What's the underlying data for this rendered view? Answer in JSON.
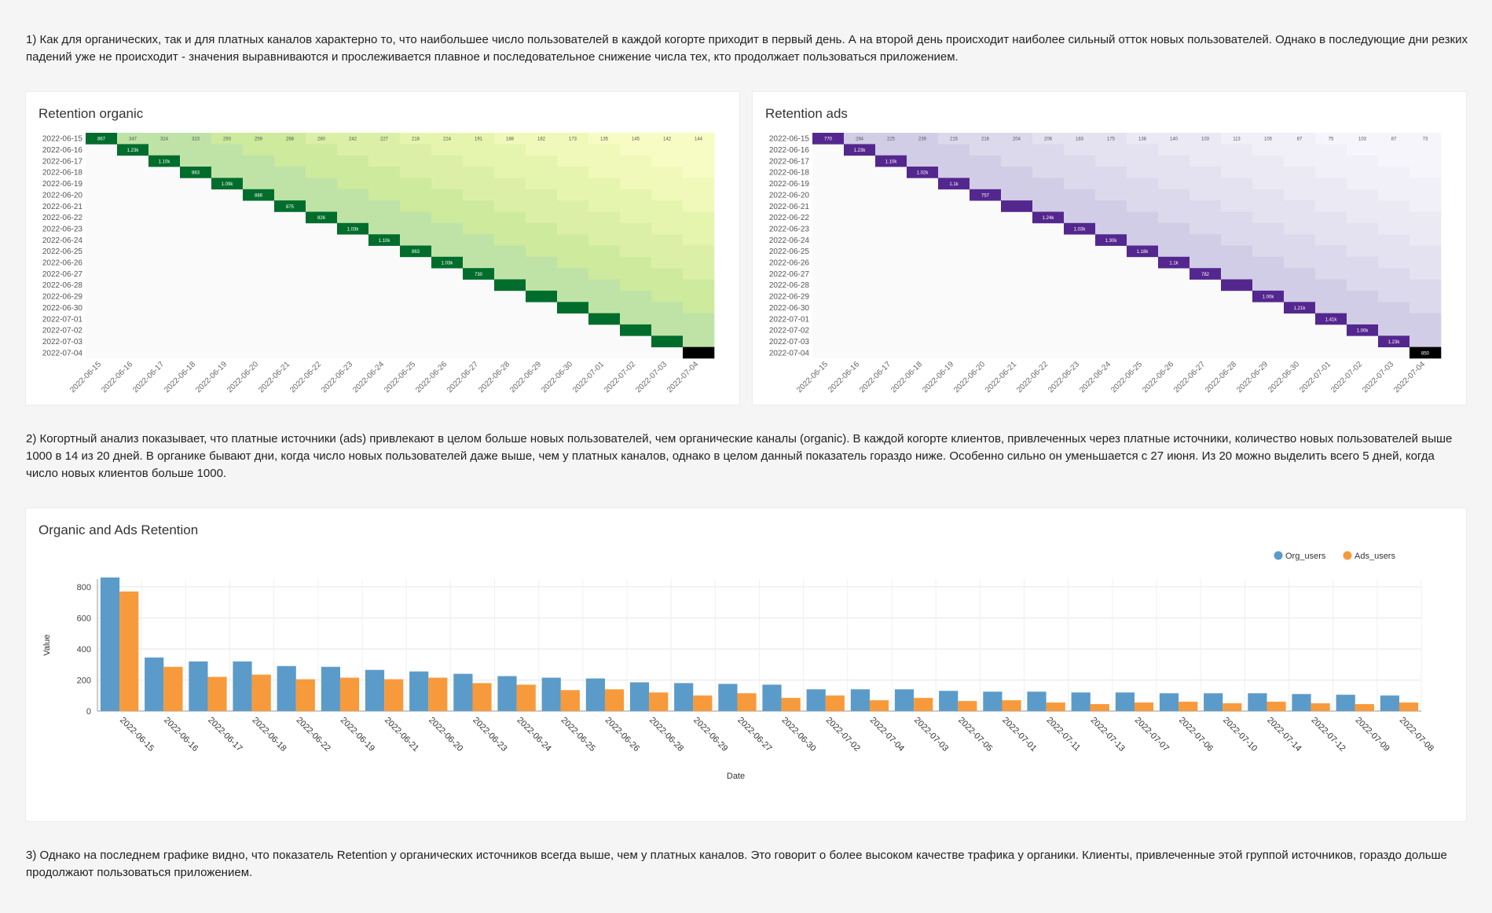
{
  "texts": {
    "p1": "1) Как для органических, так и для платных каналов характерно то, что наибольшее число пользователей в каждой когорте приходит в первый день. А на второй день происходит наиболее сильный отток новых пользователей. Однако в последующие дни резких падений уже не происходит - значения выравниваются и прослеживается плавное и последовательное снижение числа тех, кто продолжает пользоваться приложением.",
    "p2": "2) Когортный анализ показывает, что платные источники (ads) привлекают в целом больше новых пользователей, чем органические каналы (organic). В каждой когорте клиентов, привлеченных через платные источники, количество новых пользователей выше 1000 в 14 из 20 дней. В органике бывают дни, когда число новых пользователей даже выше, чем у платных каналов, однако в целом данный показатель гораздо ниже. Особенно сильно он уменьшается с 27 июня. Из 20 можно выделить всего 5 дней, когда число новых клиентов больше 1000.",
    "p3": "3) Однако на последнем графике видно, что показатель Retention у органических источников всегда выше, чем у платных каналов. Это говорит о более высоком качестве трафика у органики. Клиенты, привлеченные этой группой источников, гораздо дольше продолжают пользоваться приложением."
  },
  "heatmap_titles": {
    "organic": "Retention organic",
    "ads": "Retention ads"
  },
  "bar_title": "Organic and Ads Retention",
  "colors": {
    "organic_scale": "green",
    "ads_scale": "purple",
    "org_bar": "#5b9bc9",
    "ads_bar": "#f79a3c"
  },
  "chart_data": [
    {
      "type": "heatmap",
      "title": "Retention organic",
      "rows": [
        "2022-06-15",
        "2022-06-16",
        "2022-06-17",
        "2022-06-18",
        "2022-06-19",
        "2022-06-20",
        "2022-06-21",
        "2022-06-22",
        "2022-06-23",
        "2022-06-24",
        "2022-06-25",
        "2022-06-26",
        "2022-06-27",
        "2022-06-28",
        "2022-06-29",
        "2022-06-30",
        "2022-07-01",
        "2022-07-02",
        "2022-07-03",
        "2022-07-04"
      ],
      "columns": [
        "2022-06-15",
        "2022-06-16",
        "2022-06-17",
        "2022-06-18",
        "2022-06-19",
        "2022-06-20",
        "2022-06-21",
        "2022-06-22",
        "2022-06-23",
        "2022-06-24",
        "2022-06-25",
        "2022-06-26",
        "2022-06-27",
        "2022-06-28",
        "2022-06-29",
        "2022-06-30",
        "2022-07-01",
        "2022-07-02",
        "2022-07-03",
        "2022-07-04"
      ],
      "first_day": [
        "867",
        "1.23k",
        "1.10k",
        "863",
        "1.09k",
        "888",
        "875",
        "826",
        "1.03k",
        "1.10k",
        "863",
        "1.03k",
        "730",
        "",
        "",
        "",
        "",
        "",
        "",
        ""
      ],
      "first_row": [
        "867",
        "347",
        "324",
        "323",
        "293",
        "259",
        "268",
        "280",
        "242",
        "227",
        "218",
        "224",
        "191",
        "188",
        "182",
        "173",
        "135",
        "145",
        "142",
        "144"
      ]
    },
    {
      "type": "heatmap",
      "title": "Retention ads",
      "rows": [
        "2022-06-15",
        "2022-06-16",
        "2022-06-17",
        "2022-06-18",
        "2022-06-19",
        "2022-06-20",
        "2022-06-21",
        "2022-06-22",
        "2022-06-23",
        "2022-06-24",
        "2022-06-25",
        "2022-06-26",
        "2022-06-27",
        "2022-06-28",
        "2022-06-29",
        "2022-06-30",
        "2022-07-01",
        "2022-07-02",
        "2022-07-03",
        "2022-07-04"
      ],
      "columns": [
        "2022-06-15",
        "2022-06-16",
        "2022-06-17",
        "2022-06-18",
        "2022-06-19",
        "2022-06-20",
        "2022-06-21",
        "2022-06-22",
        "2022-06-23",
        "2022-06-24",
        "2022-06-25",
        "2022-06-26",
        "2022-06-27",
        "2022-06-28",
        "2022-06-29",
        "2022-06-30",
        "2022-07-01",
        "2022-07-02",
        "2022-07-03",
        "2022-07-04"
      ],
      "first_day": [
        "770",
        "1.23k",
        "1.10k",
        "1.02k",
        "1.1k",
        "757",
        "",
        "1.24k",
        "1.03k",
        "1.30k",
        "1.18k",
        "1.1k",
        "782",
        "",
        "1.00k",
        "1.21k",
        "1.41k",
        "1.00k",
        "1.23k",
        "850"
      ],
      "first_row": [
        "770",
        "284",
        "225",
        "239",
        "215",
        "216",
        "204",
        "206",
        "183",
        "175",
        "138",
        "140",
        "103",
        "113",
        "105",
        "87",
        "75",
        "103",
        "87",
        "73"
      ]
    },
    {
      "type": "bar",
      "title": "Organic and Ads Retention",
      "xlabel": "Date",
      "ylabel": "Value",
      "ylim": [
        0,
        850
      ],
      "yticks": [
        0,
        200,
        400,
        600,
        800
      ],
      "legend_position": "top-right",
      "categories": [
        "2022-06-15",
        "2022-06-16",
        "2022-06-17",
        "2022-06-18",
        "2022-06-22",
        "2022-06-19",
        "2022-06-21",
        "2022-06-20",
        "2022-06-23",
        "2022-06-24",
        "2022-06-25",
        "2022-06-26",
        "2022-06-28",
        "2022-06-29",
        "2022-06-27",
        "2022-06-30",
        "2022-07-02",
        "2022-07-04",
        "2022-07-03",
        "2022-07-05",
        "2022-07-01",
        "2022-07-11",
        "2022-07-13",
        "2022-07-07",
        "2022-07-06",
        "2022-07-10",
        "2022-07-14",
        "2022-07-12",
        "2022-07-09",
        "2022-07-08"
      ],
      "series": [
        {
          "name": "Org_users",
          "values": [
            870,
            345,
            320,
            320,
            290,
            285,
            265,
            255,
            240,
            225,
            215,
            210,
            185,
            180,
            175,
            170,
            140,
            140,
            140,
            130,
            125,
            125,
            120,
            120,
            115,
            115,
            115,
            110,
            105,
            100
          ]
        },
        {
          "name": "Ads_users",
          "values": [
            770,
            285,
            220,
            235,
            205,
            215,
            205,
            215,
            180,
            170,
            135,
            140,
            120,
            100,
            115,
            85,
            100,
            70,
            85,
            65,
            70,
            55,
            45,
            55,
            60,
            50,
            60,
            50,
            45,
            55
          ]
        }
      ]
    }
  ]
}
